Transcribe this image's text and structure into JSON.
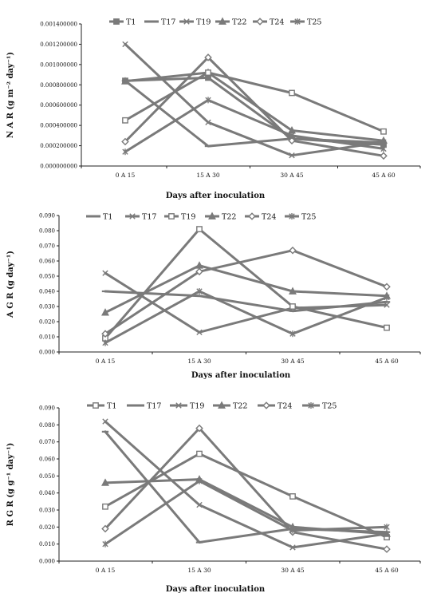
{
  "chart_data": [
    {
      "type": "line",
      "ylabel": "N A R (g m⁻² day⁻¹)",
      "xlabel": "Days after inoculation",
      "categories": [
        "0 A 15",
        "15 A 30",
        "30 A 45",
        "45 A 60"
      ],
      "ylim": [
        0,
        0.0014
      ],
      "yticks": [
        "0.000000000",
        "0.000200000",
        "0.000400000",
        "0.000600000",
        "0.000800000",
        "0.001000000",
        "0.001200000",
        "0.001400000"
      ],
      "legend_position": "top",
      "grid": false,
      "series": [
        {
          "name": "T1",
          "marker": "square",
          "values": [
            0.00084,
            0.00087,
            0.00027,
            0.00021
          ]
        },
        {
          "name": "T17",
          "marker": "dash",
          "values": [
            0.00084,
            0.000196,
            0.00027,
            0.00023
          ]
        },
        {
          "name": "T19",
          "marker": "x",
          "values": [
            0.0012,
            0.00043,
            0.000105,
            0.000235
          ]
        },
        {
          "name": "T22",
          "marker": "triangle",
          "values": [
            0.000835,
            0.00092,
            0.00035,
            0.00025
          ]
        },
        {
          "name": "T24",
          "marker": "diamond",
          "values": [
            0.00024,
            0.00107,
            0.00025,
            0.0001
          ]
        },
        {
          "name": "T25",
          "marker": "star",
          "values": [
            0.00014,
            0.00065,
            0.0003,
            0.00017
          ]
        },
        {
          "name": "",
          "marker": "open-square",
          "values": [
            0.00045,
            0.00092,
            0.00072,
            0.00034
          ]
        }
      ]
    },
    {
      "type": "line",
      "ylabel": "A G R (g day⁻¹)",
      "xlabel": "Days after inoculation",
      "categories": [
        "0 A 15",
        "15 A 30",
        "30 A 45",
        "45 A 60"
      ],
      "ylim": [
        0,
        0.09
      ],
      "yticks": [
        "0.000",
        "0.010",
        "0.020",
        "0.030",
        "0.040",
        "0.050",
        "0.060",
        "0.070",
        "0.080",
        "0.090"
      ],
      "legend_position": "top",
      "grid": false,
      "series": [
        {
          "name": "T1",
          "marker": "dash",
          "values": [
            0.04,
            0.037,
            0.027,
            0.033
          ]
        },
        {
          "name": "T17",
          "marker": "x",
          "values": [
            0.052,
            0.013,
            0.029,
            0.031
          ]
        },
        {
          "name": "T19",
          "marker": "open-square",
          "values": [
            0.009,
            0.081,
            0.03,
            0.016
          ]
        },
        {
          "name": "T22",
          "marker": "triangle",
          "values": [
            0.026,
            0.057,
            0.04,
            0.037
          ]
        },
        {
          "name": "T24",
          "marker": "diamond",
          "values": [
            0.012,
            0.053,
            0.067,
            0.043
          ]
        },
        {
          "name": "T25",
          "marker": "star",
          "values": [
            0.006,
            0.04,
            0.012,
            0.036
          ]
        }
      ]
    },
    {
      "type": "line",
      "ylabel": "R G R (g g⁻¹ day⁻¹)",
      "xlabel": "Days after inoculation",
      "categories": [
        "0 A 15",
        "15 A 30",
        "30 A 45",
        "45 A 60"
      ],
      "ylim": [
        0,
        0.09
      ],
      "yticks": [
        "0.000",
        "0.010",
        "0.020",
        "0.030",
        "0.040",
        "0.050",
        "0.060",
        "0.070",
        "0.080",
        "0.090"
      ],
      "legend_position": "top",
      "grid": false,
      "series": [
        {
          "name": "T1",
          "marker": "open-square",
          "values": [
            0.032,
            0.063,
            0.038,
            0.014
          ]
        },
        {
          "name": "T17",
          "marker": "dash",
          "values": [
            0.076,
            0.011,
            0.019,
            0.017
          ]
        },
        {
          "name": "T19",
          "marker": "x",
          "values": [
            0.082,
            0.033,
            0.008,
            0.016
          ]
        },
        {
          "name": "T22",
          "marker": "triangle",
          "values": [
            0.046,
            0.048,
            0.02,
            0.016
          ]
        },
        {
          "name": "T24",
          "marker": "diamond",
          "values": [
            0.019,
            0.078,
            0.017,
            0.007
          ]
        },
        {
          "name": "T25",
          "marker": "star",
          "values": [
            0.01,
            0.047,
            0.018,
            0.02
          ]
        }
      ]
    }
  ],
  "colors": {
    "series_line": "#7a7a7a",
    "axis": "#222222",
    "text": "#111111"
  }
}
